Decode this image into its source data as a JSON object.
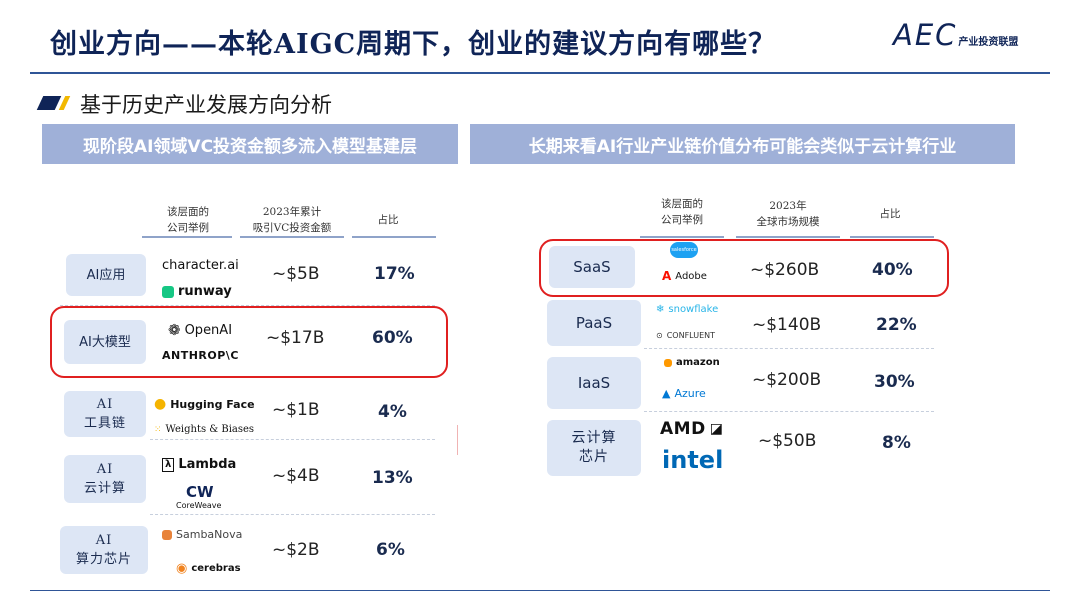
{
  "header": {
    "title": "创业方向——本轮AIGC周期下，创业的建议方向有哪些？",
    "logo_mark": "AEC",
    "logo_text": "产业投资联盟"
  },
  "subtitle": "基于历史产业发展方向分析",
  "left": {
    "banner": "现阶段AI领域VC投资金额多流入模型基建层",
    "headers": {
      "companies": [
        "该层面的",
        "公司举例"
      ],
      "amount": [
        "2023年累计",
        "吸引VC投资金额"
      ],
      "share": "占比"
    },
    "rows": [
      {
        "category": [
          "AI应用"
        ],
        "companies": [
          "character.ai",
          "runway"
        ],
        "amount": "~$5B",
        "share": "17%"
      },
      {
        "category": [
          "AI大模型"
        ],
        "companies": [
          "OpenAI",
          "ANTHROP\\C"
        ],
        "amount": "~$17B",
        "share": "60%"
      },
      {
        "category": [
          "AI",
          "工具链"
        ],
        "companies": [
          "Hugging Face",
          "Weights & Biases"
        ],
        "amount": "~$1B",
        "share": "4%"
      },
      {
        "category": [
          "AI",
          "云计算"
        ],
        "companies": [
          "Lambda",
          "CoreWeave"
        ],
        "amount": "~$4B",
        "share": "13%"
      },
      {
        "category": [
          "AI",
          "算力芯片"
        ],
        "companies": [
          "SambaNova",
          "cerebras"
        ],
        "amount": "~$2B",
        "share": "6%"
      }
    ]
  },
  "right": {
    "banner": "长期来看AI行业产业链价值分布可能会类似于云计算行业",
    "headers": {
      "companies": [
        "该层面的",
        "公司举例"
      ],
      "market": [
        "2023年",
        "全球市场规模"
      ],
      "share": "占比"
    },
    "rows": [
      {
        "category": [
          "SaaS"
        ],
        "companies": [
          "salesforce",
          "Adobe"
        ],
        "amount": "~$260B",
        "share": "40%"
      },
      {
        "category": [
          "PaaS"
        ],
        "companies": [
          "snowflake",
          "CONFLUENT"
        ],
        "amount": "~$140B",
        "share": "22%"
      },
      {
        "category": [
          "IaaS"
        ],
        "companies": [
          "amazon",
          "Azure"
        ],
        "amount": "~$200B",
        "share": "30%"
      },
      {
        "category": [
          "云计算",
          "芯片"
        ],
        "companies": [
          "AMD",
          "intel"
        ],
        "amount": "~$50B",
        "share": "8%"
      }
    ]
  },
  "colors": {
    "title": "#0f2457",
    "banner": "#9fb0d8",
    "category_bg": "#dde6f5",
    "highlight": "#e02020",
    "accent": "#f2b800"
  }
}
